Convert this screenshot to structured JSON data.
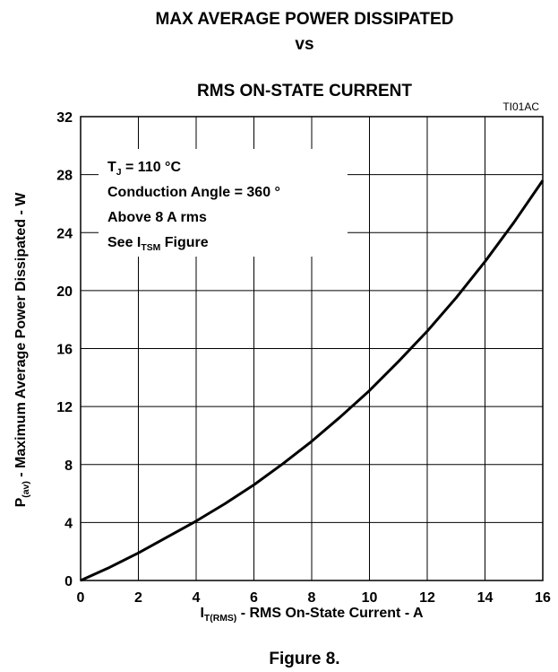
{
  "chart_data": {
    "type": "line",
    "title": [
      "MAX AVERAGE POWER DISSIPATED",
      "vs",
      "RMS ON-STATE CURRENT"
    ],
    "figure_code": "TI01AC",
    "caption": "Figure 8.",
    "x_label": {
      "text": "I",
      "sub": "T(RMS)",
      "after": " - RMS On-State Current - A"
    },
    "y_label": {
      "text": "P",
      "sub": "(av)",
      "after": " - Maximum Average Power Dissipated - W"
    },
    "annotations": [
      {
        "text": "T",
        "sub": "J",
        "after": " = 110 °C"
      },
      {
        "text": "Conduction Angle = 360 °"
      },
      {
        "text": "Above 8 A rms"
      },
      {
        "text": "See I",
        "sub": "TSM",
        "after": " Figure"
      }
    ],
    "x": [
      0,
      1,
      2,
      3,
      4,
      5,
      6,
      7,
      8,
      9,
      10,
      11,
      12,
      13,
      14,
      15,
      16
    ],
    "series": [
      {
        "name": "P(av)",
        "color": "#000000",
        "values": [
          0,
          0.9,
          1.9,
          3.0,
          4.1,
          5.3,
          6.6,
          8.05,
          9.6,
          11.3,
          13.1,
          15.1,
          17.2,
          19.5,
          22.0,
          24.7,
          27.6
        ]
      }
    ],
    "xlim": [
      0,
      16
    ],
    "xticks": [
      0,
      2,
      4,
      6,
      8,
      10,
      12,
      14,
      16
    ],
    "ylim": [
      0,
      32
    ],
    "yticks": [
      0,
      4,
      8,
      12,
      16,
      20,
      24,
      28,
      32
    ],
    "grid": true
  }
}
